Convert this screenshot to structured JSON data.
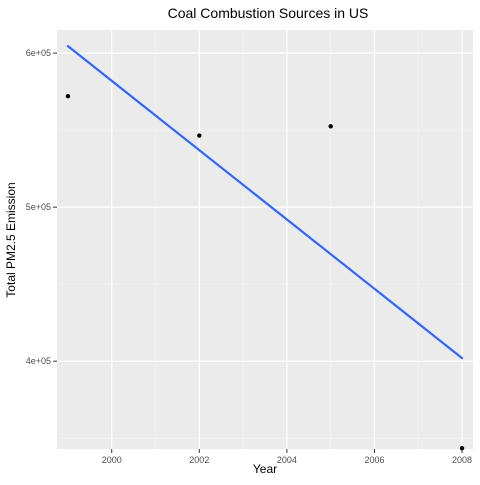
{
  "chart_data": {
    "type": "scatter",
    "title": "Coal Combustion Sources in US",
    "xlabel": "Year",
    "ylabel": "Total PM2.5 Emission",
    "xlim": [
      1998.75,
      2008.25
    ],
    "ylim": [
      343000,
      615000
    ],
    "x_ticks": [
      2000,
      2002,
      2004,
      2006,
      2008
    ],
    "x_tick_labels": [
      "2000",
      "2002",
      "2004",
      "2006",
      "2008"
    ],
    "y_ticks": [
      400000,
      500000,
      600000
    ],
    "y_tick_labels": [
      "4e+05",
      "5e+05",
      "6e+05"
    ],
    "grid": true,
    "legend": "none",
    "points": {
      "x": [
        1999,
        2002,
        2005,
        2008
      ],
      "y": [
        572000,
        546500,
        552500,
        343500
      ]
    },
    "trend_line": {
      "x": [
        1999,
        2008
      ],
      "y": [
        604500,
        402000
      ]
    },
    "colors": {
      "panel_background": "#ebebeb",
      "grid_major": "#ffffff",
      "grid_minor": "#f5f5f5",
      "points": "#000000",
      "trend_line": "#3366ff",
      "text": "#000000",
      "tick_text": "#4d4d4d"
    }
  }
}
